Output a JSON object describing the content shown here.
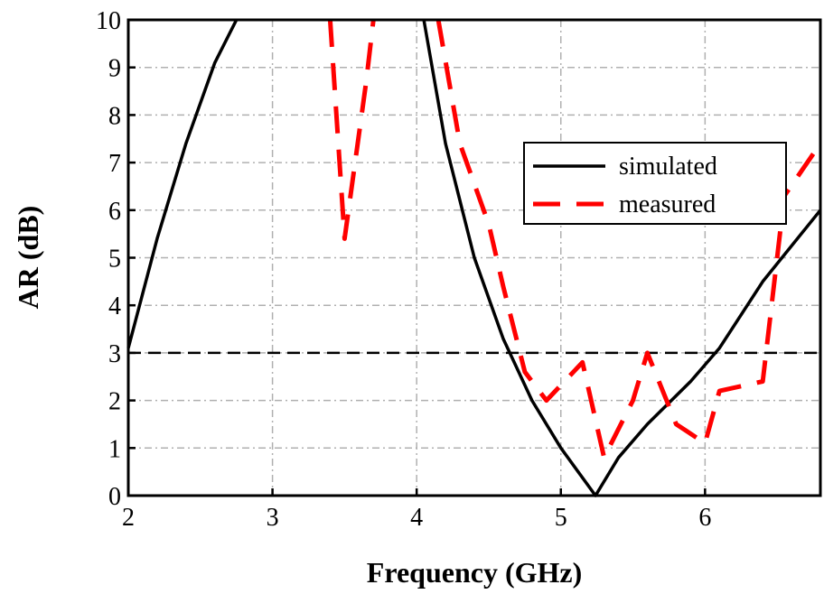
{
  "chart_data": {
    "type": "line",
    "title": "",
    "xlabel": "Frequency (GHz)",
    "ylabel": "AR (dB)",
    "xlim": [
      2,
      6.8
    ],
    "ylim": [
      0,
      10
    ],
    "xticks": [
      2,
      3,
      4,
      5,
      6
    ],
    "yticks": [
      0,
      1,
      2,
      3,
      4,
      5,
      6,
      7,
      8,
      9,
      10
    ],
    "grid": true,
    "legend_position": "right",
    "reference_line": {
      "y": 3,
      "style": "dashed",
      "color": "#000000"
    },
    "series": [
      {
        "name": "simulated",
        "style": "solid",
        "color": "#000000",
        "segments": [
          {
            "x": [
              2.0,
              2.2,
              2.4,
              2.6,
              2.75
            ],
            "y": [
              3.1,
              5.4,
              7.4,
              9.1,
              10.0
            ]
          },
          {
            "x": [
              4.05,
              4.2,
              4.4,
              4.6,
              4.8,
              5.0,
              5.24,
              5.4,
              5.6,
              5.9,
              6.1,
              6.4,
              6.8
            ],
            "y": [
              10.0,
              7.4,
              5.0,
              3.3,
              2.0,
              1.0,
              0.0,
              0.8,
              1.5,
              2.4,
              3.1,
              4.5,
              6.0
            ]
          }
        ]
      },
      {
        "name": "measured",
        "style": "dashed",
        "color": "#ff0000",
        "segments": [
          {
            "x": [
              3.4,
              3.5,
              3.65,
              3.7
            ],
            "y": [
              10.0,
              5.4,
              8.7,
              10.0
            ]
          },
          {
            "x": [
              4.15,
              4.3,
              4.5,
              4.6,
              4.75,
              4.9,
              5.15,
              5.3,
              5.5,
              5.6,
              5.8,
              6.0,
              6.1,
              6.4,
              6.55,
              6.8
            ],
            "y": [
              10.0,
              7.4,
              5.7,
              4.4,
              2.6,
              2.0,
              2.8,
              0.8,
              2.0,
              3.0,
              1.5,
              1.1,
              2.2,
              2.4,
              6.3,
              7.4
            ]
          }
        ]
      }
    ]
  },
  "colors": {
    "axis": "#000000",
    "grid": "#b0b0b0",
    "measured": "#ff0000",
    "simulated": "#000000"
  }
}
